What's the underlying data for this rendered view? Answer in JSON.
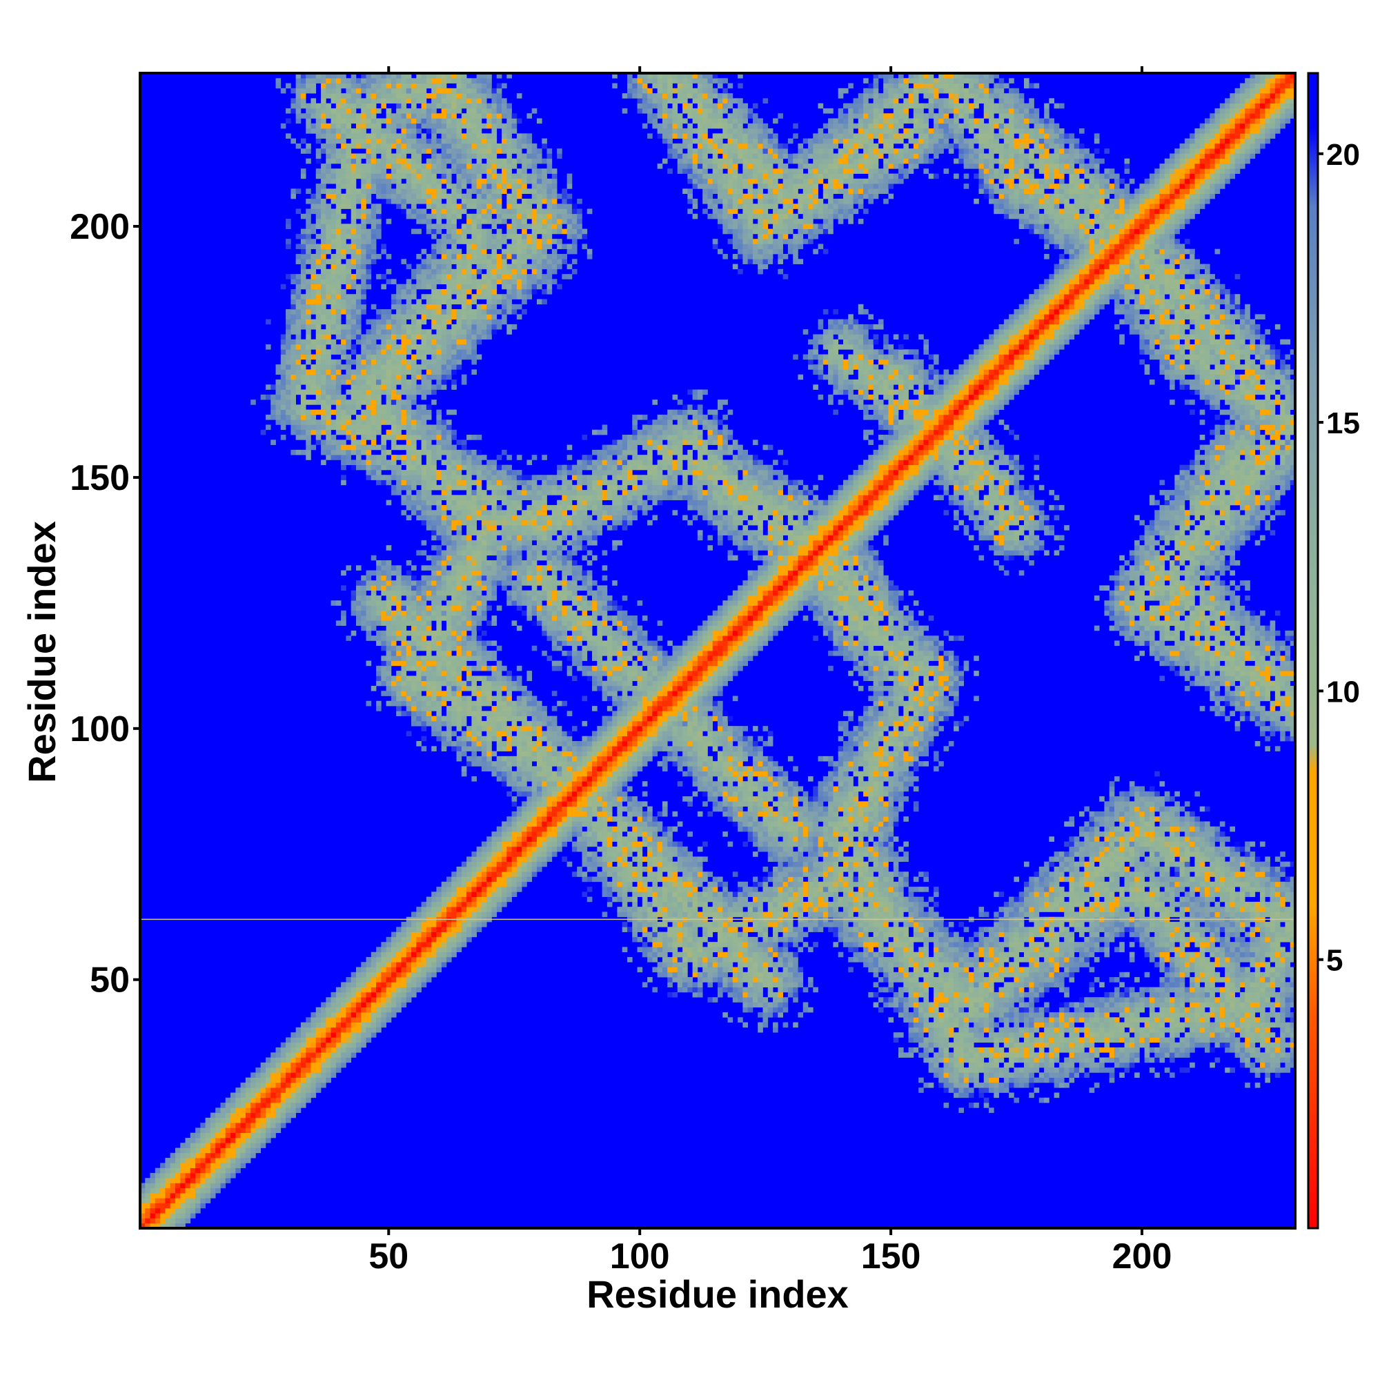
{
  "chart_data": {
    "type": "heatmap",
    "description_kind": "residue distance map",
    "xlabel": "Residue index",
    "ylabel": "Residue index",
    "n_residues": 230,
    "xlim": [
      1,
      230
    ],
    "ylim": [
      1,
      230
    ],
    "x_ticks": [
      50,
      100,
      150,
      200
    ],
    "y_ticks": [
      50,
      100,
      150,
      200
    ],
    "colorbar": {
      "ticks": [
        5,
        10,
        15,
        20
      ],
      "range": [
        0,
        21.5
      ],
      "colors": [
        {
          "value": 0,
          "color": "#ff0000"
        },
        {
          "value": 4,
          "color": "#ff5a00"
        },
        {
          "value": 6,
          "color": "#ffa500"
        },
        {
          "value": 8.5,
          "color": "#ffa500"
        },
        {
          "value": 9,
          "color": "#9fb88a"
        },
        {
          "value": 12,
          "color": "#8fb39a"
        },
        {
          "value": 16,
          "color": "#7f9fb0"
        },
        {
          "value": 19,
          "color": "#5a7fc4"
        },
        {
          "value": 20.5,
          "color": "#0000ff"
        }
      ]
    },
    "background_color": "#0000ff",
    "diagonal": {
      "from": 1,
      "to": 230,
      "width_residues": 8
    },
    "contact_bands": [
      {
        "from": [
          34,
          165
        ],
        "to": [
          45,
          222
        ],
        "width": 12
      },
      {
        "from": [
          45,
          222
        ],
        "to": [
          62,
          230
        ],
        "width": 12
      },
      {
        "from": [
          45,
          165
        ],
        "to": [
          80,
          200
        ],
        "width": 14
      },
      {
        "from": [
          80,
          200
        ],
        "to": [
          60,
          230
        ],
        "width": 14
      },
      {
        "from": [
          34,
          165
        ],
        "to": [
          80,
          140
        ],
        "width": 12
      },
      {
        "from": [
          80,
          140
        ],
        "to": [
          107,
          155
        ],
        "width": 12
      },
      {
        "from": [
          107,
          155
        ],
        "to": [
          132,
          140
        ],
        "width": 12
      },
      {
        "from": [
          132,
          140
        ],
        "to": [
          145,
          120
        ],
        "width": 12
      },
      {
        "from": [
          145,
          120
        ],
        "to": [
          157,
          110
        ],
        "width": 12
      },
      {
        "from": [
          157,
          110
        ],
        "to": [
          146,
          90
        ],
        "width": 12
      },
      {
        "from": [
          146,
          90
        ],
        "to": [
          140,
          70
        ],
        "width": 12
      },
      {
        "from": [
          140,
          70
        ],
        "to": [
          165,
          45
        ],
        "width": 14
      },
      {
        "from": [
          165,
          45
        ],
        "to": [
          190,
          65
        ],
        "width": 14
      },
      {
        "from": [
          190,
          65
        ],
        "to": [
          200,
          68
        ],
        "width": 12
      },
      {
        "from": [
          200,
          68
        ],
        "to": [
          225,
          38
        ],
        "width": 12
      },
      {
        "from": [
          90,
          85
        ],
        "to": [
          110,
          55
        ],
        "width": 12
      },
      {
        "from": [
          110,
          55
        ],
        "to": [
          140,
          70
        ],
        "width": 12
      },
      {
        "from": [
          110,
          100
        ],
        "to": [
          130,
          80
        ],
        "width": 12
      },
      {
        "from": [
          50,
          125
        ],
        "to": [
          80,
          95
        ],
        "width": 12
      },
      {
        "from": [
          80,
          95
        ],
        "to": [
          115,
          62
        ],
        "width": 10
      },
      {
        "from": [
          105,
          230
        ],
        "to": [
          130,
          205
        ],
        "width": 12
      },
      {
        "from": [
          130,
          205
        ],
        "to": [
          160,
          230
        ],
        "width": 12
      },
      {
        "from": [
          160,
          230
        ],
        "to": [
          175,
          210
        ],
        "width": 10
      },
      {
        "from": [
          175,
          210
        ],
        "to": [
          205,
          190
        ],
        "width": 12
      },
      {
        "from": [
          205,
          190
        ],
        "to": [
          230,
          160
        ],
        "width": 12
      },
      {
        "from": [
          200,
          125
        ],
        "to": [
          230,
          105
        ],
        "width": 12
      },
      {
        "from": [
          200,
          125
        ],
        "to": [
          220,
          155
        ],
        "width": 12
      },
      {
        "from": [
          140,
          175
        ],
        "to": [
          170,
          150
        ],
        "width": 10
      }
    ],
    "horizontal_line_at": 62.5
  }
}
